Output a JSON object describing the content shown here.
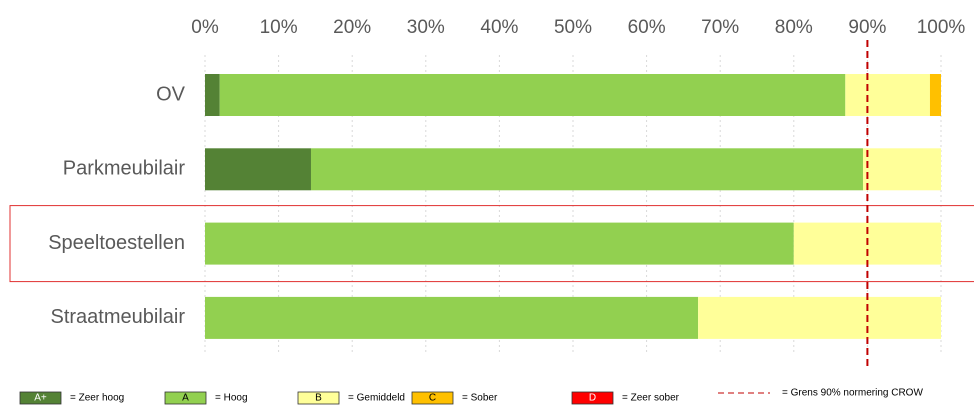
{
  "chart_data": {
    "type": "stacked-barh",
    "categories": [
      "OV",
      "Parkmeubilair",
      "Speeltoestellen",
      "Straatmeubilair"
    ],
    "series": [
      {
        "name": "A+",
        "description": "= Zeer hoog",
        "color": "#548235",
        "label_color": "#ffffff",
        "values": [
          2,
          14.4,
          0,
          0
        ]
      },
      {
        "name": "A",
        "description": "= Hoog",
        "color": "#92d050",
        "label_color": "#000000",
        "values": [
          85,
          75,
          80,
          67
        ]
      },
      {
        "name": "B",
        "description": "= Gemiddeld",
        "color": "#ffff99",
        "label_color": "#000000",
        "values": [
          11.5,
          10.6,
          20,
          33
        ]
      },
      {
        "name": "C",
        "description": "= Sober",
        "color": "#ffc000",
        "label_color": "#000000",
        "values": [
          1.5,
          0,
          0,
          0
        ]
      },
      {
        "name": "D",
        "description": "= Zeer sober",
        "color": "#ff0000",
        "label_color": "#ffffff",
        "values": [
          0,
          0,
          0,
          0
        ]
      }
    ],
    "xlim": [
      0,
      100
    ],
    "xticks": [
      {
        "value": 0,
        "label": "0%"
      },
      {
        "value": 10,
        "label": "10%"
      },
      {
        "value": 20,
        "label": "20%"
      },
      {
        "value": 30,
        "label": "30%"
      },
      {
        "value": 40,
        "label": "40%"
      },
      {
        "value": 50,
        "label": "50%"
      },
      {
        "value": 60,
        "label": "60%"
      },
      {
        "value": 70,
        "label": "70%"
      },
      {
        "value": 80,
        "label": "80%"
      },
      {
        "value": 90,
        "label": "90%"
      },
      {
        "value": 100,
        "label": "100%"
      }
    ],
    "grid": true,
    "reference_line": {
      "value": 90,
      "label": "= Grens 90% normering CROW",
      "color": "#c00000"
    },
    "highlight_category": 2
  }
}
